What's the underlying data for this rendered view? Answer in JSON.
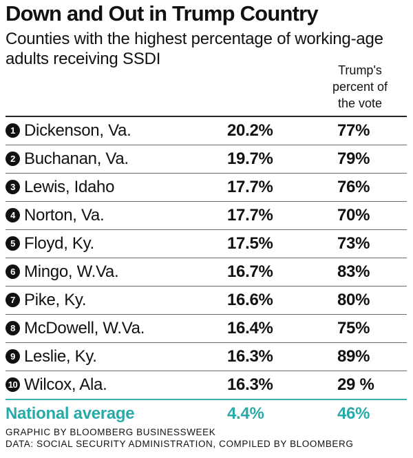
{
  "header": {
    "title": "Down and Out in Trump Country",
    "subtitle": "Counties with the highest percentage of working-age adults receiving SSDI",
    "vote_column_header": "Trump's percent of the vote"
  },
  "chart_data": {
    "type": "table",
    "title": "Down and Out in Trump Country",
    "subtitle": "Counties with the highest percentage of working-age adults receiving SSDI",
    "columns": [
      "",
      "",
      "Trump's percent of the vote"
    ],
    "rows": [
      {
        "rank": "1",
        "county": "Dickenson, Va.",
        "ssdi": "20.2%",
        "vote": "77%"
      },
      {
        "rank": "2",
        "county": "Buchanan, Va.",
        "ssdi": "19.7%",
        "vote": "79%"
      },
      {
        "rank": "3",
        "county": "Lewis, Idaho",
        "ssdi": "17.7%",
        "vote": "76%"
      },
      {
        "rank": "4",
        "county": "Norton, Va.",
        "ssdi": "17.7%",
        "vote": "70%"
      },
      {
        "rank": "5",
        "county": "Floyd, Ky.",
        "ssdi": "17.5%",
        "vote": "73%"
      },
      {
        "rank": "6",
        "county": "Mingo, W.Va.",
        "ssdi": "16.7%",
        "vote": "83%"
      },
      {
        "rank": "7",
        "county": "Pike, Ky.",
        "ssdi": "16.6%",
        "vote": "80%"
      },
      {
        "rank": "8",
        "county": "McDowell, W.Va.",
        "ssdi": "16.4%",
        "vote": "75%"
      },
      {
        "rank": "9",
        "county": "Leslie, Ky.",
        "ssdi": "16.3%",
        "vote": "89%"
      },
      {
        "rank": "10",
        "county": "Wilcox, Ala.",
        "ssdi": "16.3%",
        "vote": "29 %"
      }
    ],
    "summary_row": {
      "label": "National average",
      "ssdi": "4.4%",
      "vote": "46%"
    }
  },
  "footer": {
    "credit_line": "GRAPHIC BY BLOOMBERG BUSINESSWEEK",
    "source_line": "DATA: SOCIAL SECURITY ADMINISTRATION, COMPILED BY BLOOMBERG"
  },
  "colors": {
    "text": "#111111",
    "accent_teal": "#2aa9a9",
    "badge": "#111111"
  }
}
